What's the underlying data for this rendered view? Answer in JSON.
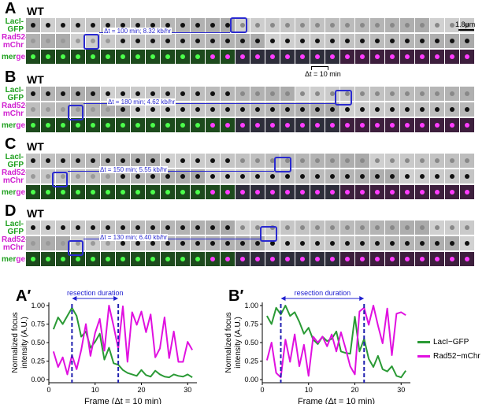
{
  "panels": [
    {
      "letter": "A",
      "strain": "WT",
      "annotation": "Δt = 100 min; 8.32 kb/hr"
    },
    {
      "letter": "B",
      "strain": "WT",
      "annotation": "Δt = 180 min; 4.62 kb/hr"
    },
    {
      "letter": "C",
      "strain": "WT",
      "annotation": "Δt = 150 min; 5.55 kb/hr"
    },
    {
      "letter": "D",
      "strain": "WT",
      "annotation": "Δt = 130 min; 6.40 kb/hr"
    }
  ],
  "row_labels": {
    "gfp": "LacI-\nGFP",
    "mchr": "Rad52-\nmChr",
    "merge_1": "mer",
    "merge_2": "ge"
  },
  "scale_bar": "1.8μm",
  "time_bar": "Δt = 10 min",
  "plots": [
    {
      "letter": "A′",
      "bracket": "resection duration",
      "xlabel": "Frame (Δt = 10 min)",
      "ylabel": "Normalized focus\nintensity (A.U.)"
    },
    {
      "letter": "B′",
      "bracket": "resection duration",
      "xlabel": "Frame (Δt = 10 min)",
      "ylabel": "Normalized focus\nintensity (A.U.)"
    }
  ],
  "legend": [
    {
      "label": "LacI−GFP",
      "color": "#2a9a35"
    },
    {
      "label": "Rad52−mChr",
      "color": "#e010e0"
    }
  ],
  "chart_data": [
    {
      "type": "line",
      "xlim": [
        0,
        32
      ],
      "ylim": [
        0,
        1
      ],
      "x_ticks": [
        0,
        10,
        20,
        30
      ],
      "y_ticks": [
        "0.00",
        "0.25",
        "0.50",
        "0.75",
        "1.00"
      ],
      "vlines": [
        5,
        15
      ],
      "series": [
        {
          "name": "LacI−GFP",
          "color": "#2a9a35",
          "x": [
            1,
            2,
            3,
            4,
            5,
            6,
            7,
            8,
            9,
            10,
            11,
            12,
            13,
            14,
            15,
            16,
            17,
            18,
            19,
            20,
            21,
            22,
            23,
            24,
            25,
            26,
            27,
            28,
            29,
            30,
            31
          ],
          "values": [
            0.68,
            0.84,
            0.75,
            0.86,
            0.97,
            0.86,
            0.58,
            0.65,
            0.43,
            0.51,
            0.62,
            0.27,
            0.43,
            0.22,
            0.2,
            0.13,
            0.09,
            0.07,
            0.05,
            0.13,
            0.06,
            0.04,
            0.12,
            0.07,
            0.04,
            0.03,
            0.07,
            0.05,
            0.04,
            0.07,
            0.03
          ]
        },
        {
          "name": "Rad52−mChr",
          "color": "#e010e0",
          "x": [
            1,
            2,
            3,
            4,
            5,
            6,
            7,
            8,
            9,
            10,
            11,
            12,
            13,
            14,
            15,
            16,
            17,
            18,
            19,
            20,
            21,
            22,
            23,
            24,
            25,
            26,
            27,
            28,
            29,
            30,
            31
          ],
          "values": [
            0.38,
            0.17,
            0.3,
            0.07,
            0.33,
            0.14,
            0.4,
            0.75,
            0.32,
            0.63,
            0.82,
            0.39,
            1.0,
            0.72,
            0.42,
            0.99,
            0.24,
            0.91,
            0.74,
            0.92,
            0.64,
            0.88,
            0.3,
            0.42,
            0.84,
            0.29,
            0.65,
            0.24,
            0.24,
            0.51,
            0.4
          ]
        }
      ]
    },
    {
      "type": "line",
      "xlim": [
        0,
        32
      ],
      "ylim": [
        0,
        1
      ],
      "x_ticks": [
        0,
        10,
        20,
        30
      ],
      "y_ticks": [
        "0.00",
        "0.25",
        "0.50",
        "0.75",
        "1.00"
      ],
      "vlines": [
        4,
        22
      ],
      "series": [
        {
          "name": "LacI−GFP",
          "color": "#2a9a35",
          "x": [
            1,
            2,
            3,
            4,
            5,
            6,
            7,
            8,
            9,
            10,
            11,
            12,
            13,
            14,
            15,
            16,
            17,
            18,
            19,
            20,
            21,
            22,
            23,
            24,
            25,
            26,
            27,
            28,
            29,
            30,
            31
          ],
          "values": [
            0.86,
            0.75,
            0.97,
            0.88,
            1.0,
            0.86,
            0.91,
            0.78,
            0.62,
            0.7,
            0.54,
            0.48,
            0.58,
            0.52,
            0.55,
            0.65,
            0.38,
            0.36,
            0.35,
            0.85,
            0.38,
            0.55,
            0.28,
            0.17,
            0.32,
            0.14,
            0.11,
            0.18,
            0.05,
            0.03,
            0.12
          ]
        },
        {
          "name": "Rad52−mChr",
          "color": "#e010e0",
          "x": [
            1,
            2,
            3,
            4,
            5,
            6,
            7,
            8,
            9,
            10,
            11,
            12,
            13,
            14,
            15,
            16,
            17,
            18,
            19,
            20,
            21,
            22,
            23,
            24,
            25,
            26,
            27,
            28,
            29,
            30,
            31
          ],
          "values": [
            0.26,
            0.5,
            0.09,
            0.03,
            0.54,
            0.24,
            0.61,
            0.18,
            0.47,
            0.05,
            0.58,
            0.5,
            0.58,
            0.45,
            0.61,
            0.38,
            0.64,
            0.42,
            0.18,
            0.07,
            0.92,
            0.97,
            0.74,
            1.0,
            0.73,
            0.49,
            0.96,
            0.33,
            0.89,
            0.91,
            0.87
          ]
        }
      ]
    }
  ]
}
